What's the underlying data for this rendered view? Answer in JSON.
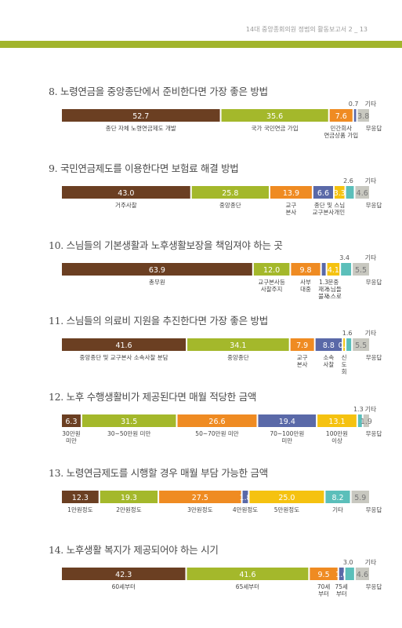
{
  "header": {
    "text": "14대 중앙종회의원 정범의 활동보고서 2 _ 13"
  },
  "colors": {
    "brown": "#6b3f22",
    "green": "#a4b82b",
    "orange": "#ef8b22",
    "blue": "#5a69a8",
    "yellow": "#f5c210",
    "teal": "#5bbfba",
    "gray": "#c8c8c0",
    "header_bar": "#a2b52c"
  },
  "chart_data": [
    {
      "type": "bar",
      "title": "8. 노령연금을 중앙종단에서 준비한다면 가장 좋은 방법",
      "segments": [
        {
          "value": 52.7,
          "label": "52.7",
          "color": "brown",
          "category": [
            "종단 자체 노령연금제도 개발"
          ]
        },
        {
          "value": 35.6,
          "label": "35.6",
          "color": "green",
          "category": [
            "국가 국민연금 가입"
          ]
        },
        {
          "value": 7.6,
          "label": "7.6",
          "color": "orange",
          "category": [
            "민간회사",
            "연금상품 가입"
          ]
        },
        {
          "value": 0.7,
          "label": "0.7",
          "color": "blue",
          "category": [],
          "above": true
        },
        {
          "value": 3.8,
          "label": "3.8",
          "color": "gray",
          "category": [
            "무응답"
          ],
          "outside": true
        }
      ],
      "other_label": "기타"
    },
    {
      "type": "bar",
      "title": "9. 국민연금제도를 이용한다면 보험료 해결 방법",
      "segments": [
        {
          "value": 43.0,
          "label": "43.0",
          "color": "brown",
          "category": [
            "거주사찰"
          ]
        },
        {
          "value": 25.8,
          "label": "25.8",
          "color": "green",
          "category": [
            "중앙종단"
          ]
        },
        {
          "value": 13.9,
          "label": "13.9",
          "color": "orange",
          "category": [
            "교구",
            "본사"
          ]
        },
        {
          "value": 6.6,
          "label": "6.6",
          "color": "blue",
          "category": [
            "종단 및",
            "교구본사"
          ]
        },
        {
          "value": 3.3,
          "label": "3.3",
          "color": "yellow",
          "category": [
            "스님",
            "개인"
          ]
        },
        {
          "value": 2.6,
          "label": "2.6",
          "color": "teal",
          "category": [],
          "above": true
        },
        {
          "value": 4.6,
          "label": "4.6",
          "color": "gray",
          "category": [
            "무응답"
          ],
          "outside": true
        }
      ],
      "other_label": "기타"
    },
    {
      "type": "bar",
      "title": "10. 스님들의 기본생활과 노후생활보장을 책임져야 하는 곳",
      "segments": [
        {
          "value": 63.9,
          "label": "63.9",
          "color": "brown",
          "category": [
            "총무원"
          ]
        },
        {
          "value": 12.0,
          "label": "12.0",
          "color": "green",
          "category": [
            "교구본사등",
            "사찰주지"
          ]
        },
        {
          "value": 9.8,
          "label": "9.8",
          "color": "orange",
          "category": [
            "사부",
            "대중"
          ]
        },
        {
          "value": 1.3,
          "label": "1.3",
          "color": "blue",
          "category": [
            "1.3",
            "재가",
            "불자"
          ],
          "small_label": true
        },
        {
          "value": 4.1,
          "label": "4.1",
          "color": "yellow",
          "category": [
            "문중",
            "스님들",
            "스스로"
          ]
        },
        {
          "value": 3.4,
          "label": "3.4",
          "color": "teal",
          "category": [],
          "above": true
        },
        {
          "value": 5.5,
          "label": "5.5",
          "color": "gray",
          "category": [
            "무응답"
          ],
          "outside": true
        }
      ],
      "other_label": "기타"
    },
    {
      "type": "bar",
      "title": "11. 스님들의 의료비 지원을 추진한다면 가장 좋은 방법",
      "segments": [
        {
          "value": 41.6,
          "label": "41.6",
          "color": "brown",
          "category": [
            "중앙종단 및 교구본사 소속사찰 분담"
          ]
        },
        {
          "value": 34.1,
          "label": "34.1",
          "color": "green",
          "category": [
            "중앙종단"
          ]
        },
        {
          "value": 7.9,
          "label": "7.9",
          "color": "orange",
          "category": [
            "교구",
            "본사"
          ]
        },
        {
          "value": 8.8,
          "label": "8.8",
          "color": "blue",
          "category": [
            "소속",
            "사찰"
          ]
        },
        {
          "value": 0.5,
          "label": "0.5",
          "color": "yellow",
          "category": [
            "신",
            "도",
            "회"
          ]
        },
        {
          "value": 1.6,
          "label": "1.6",
          "color": "teal",
          "category": [],
          "above": true
        },
        {
          "value": 5.5,
          "label": "5.5",
          "color": "gray",
          "category": [
            "무응답"
          ],
          "outside": true
        }
      ],
      "other_label": "기타"
    },
    {
      "type": "bar",
      "title": "12. 노후 수행생활비가 제공된다면 매월 적당한 금액",
      "segments": [
        {
          "value": 6.3,
          "label": "6.3",
          "color": "brown",
          "category": [
            "30만원",
            "미만"
          ]
        },
        {
          "value": 31.5,
          "label": "31.5",
          "color": "green",
          "category": [
            "30~50만원 미만"
          ]
        },
        {
          "value": 26.6,
          "label": "26.6",
          "color": "orange",
          "category": [
            "50~70만원 미만"
          ]
        },
        {
          "value": 19.4,
          "label": "19.4",
          "color": "blue",
          "category": [
            "70~100만원",
            "미만"
          ]
        },
        {
          "value": 13.1,
          "label": "13.1",
          "color": "yellow",
          "category": [
            "100만원",
            "이상"
          ]
        },
        {
          "value": 1.3,
          "label": "1.3",
          "color": "teal",
          "category": [],
          "above": true
        },
        {
          "value": 1.9,
          "label": "1.9",
          "color": "gray",
          "category": [
            "무응답"
          ],
          "outside": true
        }
      ],
      "other_label": "기타"
    },
    {
      "type": "bar",
      "title": "13. 노령연금제도를 시행할 경우 매월 부담 가능한 금액",
      "segments": [
        {
          "value": 12.3,
          "label": "12.3",
          "color": "brown",
          "category": [
            "1만원정도"
          ]
        },
        {
          "value": 19.3,
          "label": "19.3",
          "color": "green",
          "category": [
            "2만원정도"
          ]
        },
        {
          "value": 27.5,
          "label": "27.5",
          "color": "orange",
          "category": [
            "3만원정도"
          ]
        },
        {
          "value": 1.8,
          "label": "1.8",
          "color": "blue",
          "category": [
            "4만원정도"
          ]
        },
        {
          "value": 25.0,
          "label": "25.0",
          "color": "yellow",
          "category": [
            "5만원정도"
          ]
        },
        {
          "value": 8.2,
          "label": "8.2",
          "color": "teal",
          "category": [
            "기타"
          ]
        },
        {
          "value": 5.9,
          "label": "5.9",
          "color": "gray",
          "category": [
            "무응답"
          ],
          "outside": true
        }
      ],
      "other_label": ""
    },
    {
      "type": "bar",
      "title": "14. 노후생활 복지가 제공되어야 하는 시기",
      "segments": [
        {
          "value": 42.3,
          "label": "42.3",
          "color": "brown",
          "category": [
            "60세부터"
          ]
        },
        {
          "value": 41.6,
          "label": "41.6",
          "color": "green",
          "category": [
            "65세부터"
          ]
        },
        {
          "value": 9.5,
          "label": "9.5",
          "color": "orange",
          "category": [
            "70세",
            "부터"
          ]
        },
        {
          "value": 1.6,
          "label": "1.6",
          "color": "blue",
          "category": [
            "75세",
            "부터"
          ]
        },
        {
          "value": 3.0,
          "label": "3.0",
          "color": "teal",
          "category": [],
          "above": true
        },
        {
          "value": 4.6,
          "label": "4.6",
          "color": "gray",
          "category": [
            "무응답"
          ],
          "outside": true
        }
      ],
      "other_label": "기타"
    }
  ]
}
